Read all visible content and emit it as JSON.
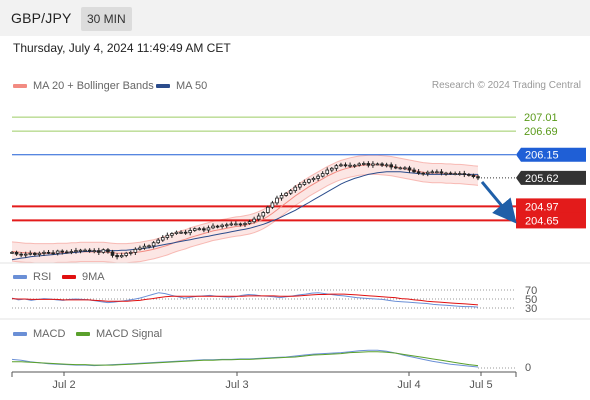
{
  "header": {
    "symbol": "GBP/JPY",
    "timeframe": "30 MIN"
  },
  "datetime": "Thursday, July 4, 2024 11:49:49 AM CET",
  "legend": {
    "ma20_label": "MA 20 + Bollinger Bands",
    "ma50_label": "MA 50",
    "rsi_label": "RSI",
    "rsi_ma_label": "9MA",
    "macd_label": "MACD",
    "macd_signal_label": "MACD Signal"
  },
  "copyright": "Research © 2024 Trading Central",
  "colors": {
    "ma20": "#f28b82",
    "ma50": "#2b4c8c",
    "rsi": "#6a8fd6",
    "rsi_ma": "#e01010",
    "macd": "#6a8fd6",
    "macd_signal": "#5aa02c",
    "resistance": "#9ccc65",
    "pivot": "#1f5fd6",
    "support": "#e31b1b",
    "last_price": "#333333"
  },
  "chart_data": [
    {
      "type": "candlestick",
      "panel": "price",
      "x_ticks": [
        "Jul 2",
        "Jul 3",
        "Jul 4",
        "Jul 5"
      ],
      "ylim": [
        203.7,
        207.4
      ],
      "close": [
        203.92,
        203.88,
        203.86,
        203.88,
        203.9,
        203.87,
        203.9,
        203.92,
        203.91,
        203.9,
        203.95,
        203.93,
        203.92,
        203.94,
        203.96,
        203.97,
        203.97,
        203.95,
        203.96,
        203.92,
        203.98,
        203.93,
        203.85,
        203.82,
        203.85,
        203.9,
        203.92,
        203.99,
        204.02,
        204.06,
        204.07,
        204.14,
        204.2,
        204.26,
        204.31,
        204.35,
        204.38,
        204.38,
        204.37,
        204.42,
        204.46,
        204.46,
        204.43,
        204.48,
        204.52,
        204.51,
        204.54,
        204.55,
        204.57,
        204.57,
        204.56,
        204.58,
        204.62,
        204.68,
        204.75,
        204.83,
        204.95,
        205.05,
        205.16,
        205.22,
        205.27,
        205.33,
        205.41,
        205.47,
        205.52,
        205.58,
        205.61,
        205.66,
        205.72,
        205.8,
        205.84,
        205.9,
        205.92,
        205.9,
        205.91,
        205.91,
        205.94,
        205.95,
        205.91,
        205.94,
        205.94,
        205.91,
        205.92,
        205.87,
        205.85,
        205.85,
        205.85,
        205.8,
        205.76,
        205.73,
        205.72,
        205.75,
        205.76,
        205.76,
        205.73,
        205.73,
        205.72,
        205.72,
        205.72,
        205.7,
        205.68,
        205.65,
        205.62
      ],
      "ma20": [
        203.94,
        203.93,
        203.92,
        203.91,
        203.91,
        203.9,
        203.9,
        203.9,
        203.9,
        203.9,
        203.91,
        203.91,
        203.91,
        203.92,
        203.92,
        203.93,
        203.93,
        203.93,
        203.93,
        203.93,
        203.93,
        203.92,
        203.91,
        203.9,
        203.9,
        203.9,
        203.91,
        203.92,
        203.93,
        203.95,
        203.97,
        203.99,
        204.02,
        204.05,
        204.08,
        204.12,
        204.16,
        204.19,
        204.22,
        204.26,
        204.29,
        204.32,
        204.35,
        204.38,
        204.41,
        204.43,
        204.45,
        204.47,
        204.49,
        204.51,
        204.52,
        204.54,
        204.56,
        204.59,
        204.63,
        204.68,
        204.74,
        204.81,
        204.89,
        204.97,
        205.05,
        205.13,
        205.21,
        205.28,
        205.35,
        205.42,
        205.48,
        205.54,
        205.6,
        205.66,
        205.71,
        205.76,
        205.8,
        205.83,
        205.86,
        205.88,
        205.9,
        205.91,
        205.92,
        205.92,
        205.92,
        205.91,
        205.9,
        205.89,
        205.87,
        205.85,
        205.83,
        205.81,
        205.79,
        205.77,
        205.75,
        205.74,
        205.73,
        205.73,
        205.73,
        205.72,
        205.72,
        205.71,
        205.71,
        205.7,
        205.69,
        205.68,
        205.67
      ],
      "ma50": [
        203.75,
        203.77,
        203.79,
        203.8,
        203.82,
        203.83,
        203.84,
        203.85,
        203.86,
        203.87,
        203.88,
        203.89,
        203.9,
        203.91,
        203.92,
        203.93,
        203.94,
        203.94,
        203.95,
        203.95,
        203.96,
        203.96,
        203.96,
        203.96,
        203.97,
        203.97,
        203.98,
        203.99,
        204,
        204.01,
        204.03,
        204.05,
        204.07,
        204.09,
        204.11,
        204.13,
        204.15,
        204.17,
        204.19,
        204.21,
        204.23,
        204.25,
        204.27,
        204.29,
        204.31,
        204.33,
        204.35,
        204.37,
        204.39,
        204.41,
        204.43,
        204.45,
        204.47,
        204.5,
        204.53,
        204.56,
        204.6,
        204.64,
        204.68,
        204.73,
        204.78,
        204.83,
        204.88,
        204.94,
        205,
        205.06,
        205.12,
        205.18,
        205.24,
        205.3,
        205.36,
        205.42,
        205.48,
        205.53,
        205.57,
        205.61,
        205.64,
        205.67,
        205.7,
        205.72,
        205.74,
        205.75,
        205.76,
        205.76,
        205.76,
        205.76,
        205.75,
        205.74,
        205.73,
        205.72,
        205.71,
        205.7,
        205.7,
        205.7,
        205.7,
        205.7,
        205.7,
        205.7,
        205.7,
        205.7,
        205.7,
        205.7,
        205.7
      ],
      "levels": [
        {
          "value": "207.01",
          "kind": "resistance"
        },
        {
          "value": "206.69",
          "kind": "resistance"
        },
        {
          "value": "206.15",
          "kind": "pivot"
        },
        {
          "value": "205.62",
          "kind": "last"
        },
        {
          "value": "204.97",
          "kind": "support"
        },
        {
          "value": "204.65",
          "kind": "support"
        }
      ],
      "forecast": "down"
    },
    {
      "type": "line",
      "panel": "rsi",
      "ylim": [
        0,
        100
      ],
      "tick_labels": [
        "70",
        "50",
        "30"
      ],
      "series": [
        {
          "name": "RSI",
          "values": [
            52,
            48,
            50,
            47,
            49,
            51,
            50,
            48,
            47,
            49,
            50,
            49,
            48,
            46,
            44,
            42,
            43,
            45,
            47,
            49,
            52,
            56,
            60,
            64,
            62,
            58,
            55,
            52,
            54,
            56,
            57,
            58,
            56,
            55,
            54,
            55,
            58,
            60,
            59,
            57,
            56,
            55,
            53,
            55,
            57,
            59,
            61,
            63,
            64,
            62,
            60,
            58,
            57,
            55,
            53,
            52,
            51,
            50,
            49,
            47,
            45,
            44,
            43,
            42,
            41,
            40,
            38,
            37,
            36,
            35,
            34,
            33,
            33,
            32
          ]
        },
        {
          "name": "9MA",
          "values": [
            51,
            50,
            50,
            49,
            49,
            49,
            49,
            49,
            48,
            48,
            48,
            48,
            48,
            47,
            46,
            45,
            45,
            45,
            45,
            46,
            47,
            49,
            51,
            53,
            55,
            56,
            56,
            56,
            56,
            56,
            56,
            56,
            56,
            56,
            56,
            56,
            56,
            57,
            57,
            57,
            57,
            57,
            56,
            56,
            56,
            57,
            58,
            59,
            60,
            60,
            61,
            61,
            61,
            60,
            59,
            58,
            57,
            56,
            55,
            54,
            53,
            51,
            50,
            48,
            47,
            45,
            44,
            43,
            42,
            41,
            40,
            39,
            38,
            37
          ]
        }
      ]
    },
    {
      "type": "line",
      "panel": "macd",
      "tick_labels": [
        "0"
      ],
      "series": [
        {
          "name": "MACD",
          "values": [
            0.18,
            0.16,
            0.13,
            0.11,
            0.09,
            0.08,
            0.07,
            0.06,
            0.06,
            0.05,
            0.06,
            0.07,
            0.08,
            0.09,
            0.1,
            0.11,
            0.12,
            0.13,
            0.14,
            0.15,
            0.16,
            0.17,
            0.17,
            0.18,
            0.18,
            0.19,
            0.19,
            0.2,
            0.21,
            0.22,
            0.23,
            0.25,
            0.27,
            0.29,
            0.3,
            0.31,
            0.32,
            0.34,
            0.36,
            0.37,
            0.37,
            0.35,
            0.31,
            0.26,
            0.22,
            0.18,
            0.14,
            0.11,
            0.08,
            0.06,
            0.04,
            0.02
          ]
        },
        {
          "name": "MACD Signal",
          "values": [
            0.13,
            0.13,
            0.12,
            0.11,
            0.1,
            0.09,
            0.08,
            0.07,
            0.07,
            0.06,
            0.06,
            0.06,
            0.07,
            0.08,
            0.09,
            0.1,
            0.11,
            0.12,
            0.13,
            0.14,
            0.15,
            0.16,
            0.16,
            0.17,
            0.17,
            0.18,
            0.18,
            0.19,
            0.2,
            0.21,
            0.22,
            0.23,
            0.25,
            0.27,
            0.28,
            0.29,
            0.3,
            0.32,
            0.33,
            0.34,
            0.34,
            0.33,
            0.31,
            0.28,
            0.25,
            0.22,
            0.19,
            0.16,
            0.13,
            0.1,
            0.07,
            0.05
          ]
        }
      ]
    }
  ]
}
